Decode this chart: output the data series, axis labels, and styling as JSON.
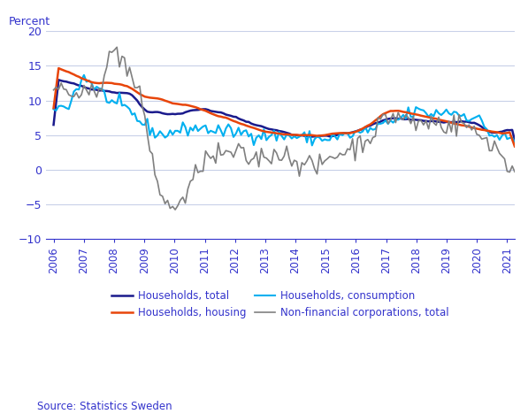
{
  "ylabel": "Percent",
  "ylim": [
    -10,
    20
  ],
  "yticks": [
    -10,
    -5,
    0,
    5,
    10,
    15,
    20
  ],
  "xlim_years": [
    2005.75,
    2021.25
  ],
  "xtick_years": [
    2006,
    2007,
    2008,
    2009,
    2010,
    2011,
    2012,
    2013,
    2014,
    2015,
    2016,
    2017,
    2018,
    2019,
    2020,
    2021
  ],
  "source_text": "Source: Statistics Sweden",
  "legend_entries": [
    {
      "label": "Households, total",
      "color": "#1a1a8c",
      "lw": 1.8
    },
    {
      "label": "Households, consumption",
      "color": "#00b0f0",
      "lw": 1.5
    },
    {
      "label": "Households, housing",
      "color": "#e8450a",
      "lw": 1.8
    },
    {
      "label": "Non-financial corporations, total",
      "color": "#808080",
      "lw": 1.2
    }
  ],
  "background_color": "#ffffff",
  "grid_color": "#c8d0e8",
  "text_color": "#3333cc",
  "axis_color": "#3333cc",
  "noise_seed": 42
}
